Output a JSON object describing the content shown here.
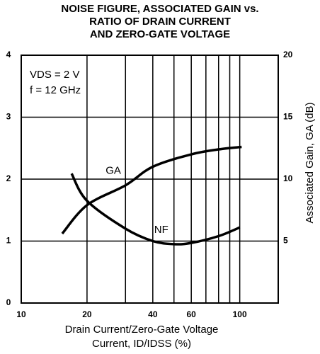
{
  "chart_data": {
    "type": "line",
    "title": [
      "NOISE FIGURE, ASSOCIATED GAIN vs.",
      "RATIO OF DRAIN CURRENT",
      "AND ZERO-GATE VOLTAGE"
    ],
    "xlabel": [
      "Drain Current/Zero-Gate Voltage",
      "Current, ID/IDSS (%)"
    ],
    "y2label": "Associated Gain, GA (dB)",
    "annotations": [
      "VDS = 2 V",
      "f = 12 GHz"
    ],
    "xscale": "log",
    "xlim": [
      10,
      150
    ],
    "xticks": [
      10,
      20,
      40,
      60,
      100
    ],
    "xgrid": [
      20,
      30,
      40,
      50,
      60,
      70,
      80,
      90,
      100
    ],
    "ylim": [
      0,
      4
    ],
    "yticks": [
      0,
      1,
      2,
      3,
      4
    ],
    "y2lim": [
      0,
      20
    ],
    "y2ticks": [
      5,
      10,
      15,
      20
    ],
    "grid": true,
    "series": [
      {
        "name": "NF",
        "color": "#000000",
        "x": [
          17,
          20,
          30,
          40,
          50,
          60,
          80,
          100
        ],
        "values": [
          2.09,
          1.65,
          1.2,
          1.0,
          0.95,
          0.97,
          1.08,
          1.22
        ]
      },
      {
        "name": "GA",
        "color": "#000000",
        "axis": "y2",
        "x": [
          15.4,
          20,
          30,
          40,
          60,
          80,
          102
        ],
        "values": [
          5.6,
          7.9,
          9.5,
          11,
          12,
          12.4,
          12.6
        ]
      }
    ]
  }
}
